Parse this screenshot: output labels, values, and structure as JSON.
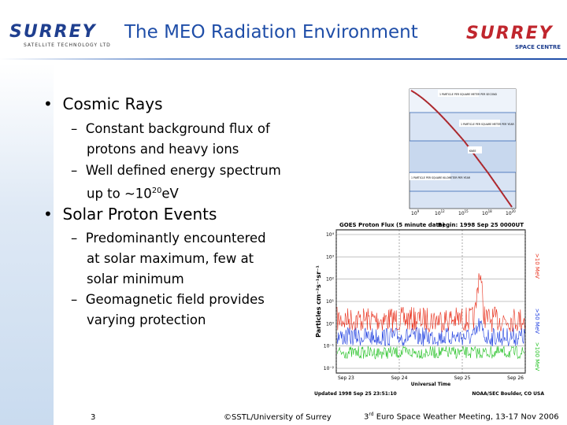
{
  "header": {
    "title": "The MEO Radiation Environment",
    "logo_left": "SURREY",
    "logo_left_sub": "SATELLITE TECHNOLOGY LTD",
    "logo_right": "SURREY",
    "logo_right_sub": "SPACE CENTRE"
  },
  "bullets": [
    {
      "text": "Cosmic Rays",
      "sub": [
        {
          "lines": [
            "Constant background flux of",
            "protons and heavy ions"
          ]
        },
        {
          "lines": [
            "Well defined energy spectrum"
          ],
          "last": {
            "text": "up to ~10",
            "sup": "20",
            "after": "eV"
          }
        }
      ]
    },
    {
      "text": "Solar Proton Events",
      "sub": [
        {
          "lines": [
            "Predominantly encountered",
            "at solar maximum, few at",
            "solar minimum"
          ]
        },
        {
          "lines": [
            "Geomagnetic field provides",
            "varying protection"
          ]
        }
      ]
    }
  ],
  "figure_spectrum": {
    "boxes": [
      "1 PARTICLE PER SQUARE METER PER SECOND",
      "1 PARTICLE PER SQUARE METER PER YEAR",
      "KNEE",
      "1 PARTICLE PER SQUARE KILOMETER PER YEAR"
    ],
    "xticks": [
      {
        "base": "10",
        "exp": "9"
      },
      {
        "base": "10",
        "exp": "12"
      },
      {
        "base": "10",
        "exp": "15"
      },
      {
        "base": "10",
        "exp": "18"
      },
      {
        "base": "10",
        "exp": "20"
      }
    ]
  },
  "figure_goes": {
    "title": "GOES Proton Flux (5 minute data)",
    "begin": "Begin: 1998 Sep 25 0000UT",
    "ylabel": "Particles cm⁻²s⁻¹sr⁻¹",
    "yticks": [
      "10⁴",
      "10³",
      "10²",
      "10¹",
      "10⁰",
      "10⁻¹",
      "10⁻²"
    ],
    "xticks": [
      "Sep 23",
      "Sep 24",
      "Sep 25",
      "Sep 26"
    ],
    "xlabel": "Universal Time",
    "channels": [
      ">10 MeV",
      ">50 MeV",
      ">100 MeV"
    ],
    "updated": "Updated 1998 Sep 25 23:51:10",
    "source": "NOAA/SEC Boulder, CO USA"
  },
  "footer": {
    "page": "3",
    "copyright": "©SSTL/University of Surrey",
    "meeting_num": "3",
    "meeting_sup": "rd",
    "meeting_rest": " Euro Space Weather Meeting, 13-17 Nov 2006"
  }
}
